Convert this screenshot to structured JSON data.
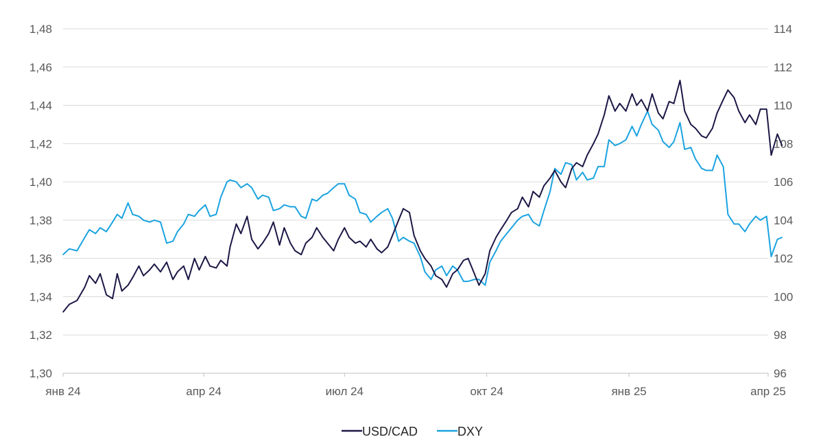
{
  "chart_data": {
    "type": "line",
    "title": "",
    "xlabel": "",
    "x_tick_labels": [
      "янв 24",
      "апр 24",
      "июл 24",
      "окт 24",
      "янв 25",
      "апр 25"
    ],
    "x_ticks": [
      "2024-01-01",
      "2024-04-01",
      "2024-07-01",
      "2024-10-01",
      "2025-01-01",
      "2025-04-01"
    ],
    "y_left": {
      "lim": [
        1.3,
        1.48
      ],
      "ticks": [
        "1,30",
        "1,32",
        "1,34",
        "1,36",
        "1,38",
        "1,40",
        "1,42",
        "1,44",
        "1,46",
        "1,48"
      ]
    },
    "y_right": {
      "lim": [
        96,
        114
      ],
      "ticks": [
        "96",
        "98",
        "100",
        "102",
        "104",
        "106",
        "108",
        "110",
        "112",
        "114"
      ]
    },
    "grid": "horizontal",
    "legend_position": "bottom-center",
    "series": [
      {
        "name": "USD/CAD",
        "axis": "left",
        "color": "#1b1745",
        "points": [
          [
            "2024-01-01",
            1.332
          ],
          [
            "2024-01-05",
            1.336
          ],
          [
            "2024-01-10",
            1.338
          ],
          [
            "2024-01-15",
            1.345
          ],
          [
            "2024-01-18",
            1.351
          ],
          [
            "2024-01-22",
            1.347
          ],
          [
            "2024-01-25",
            1.352
          ],
          [
            "2024-01-29",
            1.341
          ],
          [
            "2024-02-02",
            1.339
          ],
          [
            "2024-02-05",
            1.352
          ],
          [
            "2024-02-08",
            1.343
          ],
          [
            "2024-02-12",
            1.346
          ],
          [
            "2024-02-15",
            1.35
          ],
          [
            "2024-02-19",
            1.356
          ],
          [
            "2024-02-22",
            1.351
          ],
          [
            "2024-02-26",
            1.354
          ],
          [
            "2024-02-29",
            1.357
          ],
          [
            "2024-03-04",
            1.353
          ],
          [
            "2024-03-08",
            1.358
          ],
          [
            "2024-03-12",
            1.349
          ],
          [
            "2024-03-15",
            1.353
          ],
          [
            "2024-03-19",
            1.356
          ],
          [
            "2024-03-22",
            1.349
          ],
          [
            "2024-03-26",
            1.36
          ],
          [
            "2024-03-29",
            1.354
          ],
          [
            "2024-04-02",
            1.361
          ],
          [
            "2024-04-05",
            1.356
          ],
          [
            "2024-04-09",
            1.355
          ],
          [
            "2024-04-12",
            1.359
          ],
          [
            "2024-04-16",
            1.356
          ],
          [
            "2024-04-18",
            1.366
          ],
          [
            "2024-04-22",
            1.378
          ],
          [
            "2024-04-25",
            1.373
          ],
          [
            "2024-04-29",
            1.382
          ],
          [
            "2024-05-02",
            1.37
          ],
          [
            "2024-05-06",
            1.365
          ],
          [
            "2024-05-09",
            1.368
          ],
          [
            "2024-05-13",
            1.373
          ],
          [
            "2024-05-16",
            1.379
          ],
          [
            "2024-05-20",
            1.367
          ],
          [
            "2024-05-23",
            1.376
          ],
          [
            "2024-05-27",
            1.368
          ],
          [
            "2024-05-30",
            1.364
          ],
          [
            "2024-06-03",
            1.362
          ],
          [
            "2024-06-06",
            1.368
          ],
          [
            "2024-06-10",
            1.371
          ],
          [
            "2024-06-13",
            1.376
          ],
          [
            "2024-06-17",
            1.371
          ],
          [
            "2024-06-20",
            1.368
          ],
          [
            "2024-06-24",
            1.364
          ],
          [
            "2024-06-27",
            1.37
          ],
          [
            "2024-07-01",
            1.376
          ],
          [
            "2024-07-04",
            1.371
          ],
          [
            "2024-07-08",
            1.368
          ],
          [
            "2024-07-11",
            1.369
          ],
          [
            "2024-07-15",
            1.366
          ],
          [
            "2024-07-18",
            1.37
          ],
          [
            "2024-07-22",
            1.365
          ],
          [
            "2024-07-25",
            1.363
          ],
          [
            "2024-07-29",
            1.366
          ],
          [
            "2024-08-01",
            1.372
          ],
          [
            "2024-08-05",
            1.38
          ],
          [
            "2024-08-08",
            1.386
          ],
          [
            "2024-08-12",
            1.384
          ],
          [
            "2024-08-15",
            1.372
          ],
          [
            "2024-08-19",
            1.364
          ],
          [
            "2024-08-22",
            1.36
          ],
          [
            "2024-08-26",
            1.356
          ],
          [
            "2024-08-29",
            1.351
          ],
          [
            "2024-09-02",
            1.349
          ],
          [
            "2024-09-05",
            1.345
          ],
          [
            "2024-09-09",
            1.352
          ],
          [
            "2024-09-12",
            1.354
          ],
          [
            "2024-09-16",
            1.359
          ],
          [
            "2024-09-19",
            1.36
          ],
          [
            "2024-09-23",
            1.352
          ],
          [
            "2024-09-26",
            1.346
          ],
          [
            "2024-09-30",
            1.352
          ],
          [
            "2024-10-03",
            1.364
          ],
          [
            "2024-10-07",
            1.371
          ],
          [
            "2024-10-10",
            1.375
          ],
          [
            "2024-10-14",
            1.38
          ],
          [
            "2024-10-17",
            1.384
          ],
          [
            "2024-10-21",
            1.386
          ],
          [
            "2024-10-24",
            1.392
          ],
          [
            "2024-10-28",
            1.387
          ],
          [
            "2024-10-31",
            1.395
          ],
          [
            "2024-11-04",
            1.392
          ],
          [
            "2024-11-07",
            1.398
          ],
          [
            "2024-11-11",
            1.402
          ],
          [
            "2024-11-14",
            1.406
          ],
          [
            "2024-11-18",
            1.4
          ],
          [
            "2024-11-21",
            1.397
          ],
          [
            "2024-11-25",
            1.407
          ],
          [
            "2024-11-28",
            1.41
          ],
          [
            "2024-12-02",
            1.408
          ],
          [
            "2024-12-05",
            1.414
          ],
          [
            "2024-12-09",
            1.42
          ],
          [
            "2024-12-12",
            1.425
          ],
          [
            "2024-12-16",
            1.435
          ],
          [
            "2024-12-19",
            1.445
          ],
          [
            "2024-12-23",
            1.437
          ],
          [
            "2024-12-26",
            1.441
          ],
          [
            "2024-12-30",
            1.437
          ],
          [
            "2025-01-03",
            1.446
          ],
          [
            "2025-01-06",
            1.44
          ],
          [
            "2025-01-09",
            1.443
          ],
          [
            "2025-01-13",
            1.437
          ],
          [
            "2025-01-16",
            1.446
          ],
          [
            "2025-01-20",
            1.436
          ],
          [
            "2025-01-23",
            1.433
          ],
          [
            "2025-01-27",
            1.442
          ],
          [
            "2025-01-30",
            1.441
          ],
          [
            "2025-02-03",
            1.453
          ],
          [
            "2025-02-06",
            1.437
          ],
          [
            "2025-02-10",
            1.43
          ],
          [
            "2025-02-13",
            1.428
          ],
          [
            "2025-02-17",
            1.424
          ],
          [
            "2025-02-20",
            1.423
          ],
          [
            "2025-02-24",
            1.428
          ],
          [
            "2025-02-27",
            1.436
          ],
          [
            "2025-03-03",
            1.443
          ],
          [
            "2025-03-06",
            1.448
          ],
          [
            "2025-03-10",
            1.444
          ],
          [
            "2025-03-13",
            1.437
          ],
          [
            "2025-03-17",
            1.431
          ],
          [
            "2025-03-20",
            1.435
          ],
          [
            "2025-03-24",
            1.43
          ],
          [
            "2025-03-27",
            1.438
          ],
          [
            "2025-03-31",
            1.438
          ],
          [
            "2025-04-03",
            1.414
          ],
          [
            "2025-04-07",
            1.425
          ],
          [
            "2025-04-10",
            1.419
          ]
        ]
      },
      {
        "name": "DXY",
        "axis": "right",
        "color": "#1aa3e0",
        "points": [
          [
            "2024-01-01",
            102.2
          ],
          [
            "2024-01-05",
            102.5
          ],
          [
            "2024-01-10",
            102.4
          ],
          [
            "2024-01-15",
            103.1
          ],
          [
            "2024-01-18",
            103.5
          ],
          [
            "2024-01-22",
            103.3
          ],
          [
            "2024-01-25",
            103.6
          ],
          [
            "2024-01-29",
            103.4
          ],
          [
            "2024-02-02",
            103.9
          ],
          [
            "2024-02-05",
            104.3
          ],
          [
            "2024-02-08",
            104.1
          ],
          [
            "2024-02-12",
            104.9
          ],
          [
            "2024-02-15",
            104.3
          ],
          [
            "2024-02-19",
            104.2
          ],
          [
            "2024-02-22",
            104.0
          ],
          [
            "2024-02-26",
            103.9
          ],
          [
            "2024-02-29",
            104.0
          ],
          [
            "2024-03-04",
            103.9
          ],
          [
            "2024-03-08",
            102.8
          ],
          [
            "2024-03-12",
            102.9
          ],
          [
            "2024-03-15",
            103.4
          ],
          [
            "2024-03-19",
            103.8
          ],
          [
            "2024-03-22",
            104.3
          ],
          [
            "2024-03-26",
            104.2
          ],
          [
            "2024-03-29",
            104.5
          ],
          [
            "2024-04-02",
            104.8
          ],
          [
            "2024-04-05",
            104.2
          ],
          [
            "2024-04-09",
            104.3
          ],
          [
            "2024-04-12",
            105.2
          ],
          [
            "2024-04-16",
            106.0
          ],
          [
            "2024-04-18",
            106.1
          ],
          [
            "2024-04-22",
            106.0
          ],
          [
            "2024-04-25",
            105.7
          ],
          [
            "2024-04-29",
            105.9
          ],
          [
            "2024-05-02",
            105.7
          ],
          [
            "2024-05-06",
            105.1
          ],
          [
            "2024-05-09",
            105.3
          ],
          [
            "2024-05-13",
            105.2
          ],
          [
            "2024-05-16",
            104.5
          ],
          [
            "2024-05-20",
            104.6
          ],
          [
            "2024-05-23",
            104.8
          ],
          [
            "2024-05-27",
            104.7
          ],
          [
            "2024-05-30",
            104.7
          ],
          [
            "2024-06-03",
            104.2
          ],
          [
            "2024-06-06",
            104.1
          ],
          [
            "2024-06-10",
            105.1
          ],
          [
            "2024-06-13",
            105.0
          ],
          [
            "2024-06-17",
            105.3
          ],
          [
            "2024-06-20",
            105.4
          ],
          [
            "2024-06-24",
            105.7
          ],
          [
            "2024-06-27",
            105.9
          ],
          [
            "2024-07-01",
            105.9
          ],
          [
            "2024-07-04",
            105.3
          ],
          [
            "2024-07-08",
            105.1
          ],
          [
            "2024-07-11",
            104.4
          ],
          [
            "2024-07-15",
            104.3
          ],
          [
            "2024-07-18",
            103.9
          ],
          [
            "2024-07-22",
            104.2
          ],
          [
            "2024-07-25",
            104.4
          ],
          [
            "2024-07-29",
            104.6
          ],
          [
            "2024-08-01",
            104.1
          ],
          [
            "2024-08-05",
            102.9
          ],
          [
            "2024-08-08",
            103.1
          ],
          [
            "2024-08-12",
            102.9
          ],
          [
            "2024-08-15",
            102.8
          ],
          [
            "2024-08-19",
            102.1
          ],
          [
            "2024-08-22",
            101.3
          ],
          [
            "2024-08-26",
            100.9
          ],
          [
            "2024-08-29",
            101.4
          ],
          [
            "2024-09-02",
            101.6
          ],
          [
            "2024-09-05",
            101.1
          ],
          [
            "2024-09-09",
            101.6
          ],
          [
            "2024-09-12",
            101.4
          ],
          [
            "2024-09-16",
            100.8
          ],
          [
            "2024-09-19",
            100.8
          ],
          [
            "2024-09-23",
            100.9
          ],
          [
            "2024-09-26",
            100.9
          ],
          [
            "2024-09-30",
            100.6
          ],
          [
            "2024-10-03",
            101.8
          ],
          [
            "2024-10-07",
            102.4
          ],
          [
            "2024-10-10",
            102.9
          ],
          [
            "2024-10-14",
            103.3
          ],
          [
            "2024-10-17",
            103.6
          ],
          [
            "2024-10-21",
            104.0
          ],
          [
            "2024-10-24",
            104.2
          ],
          [
            "2024-10-28",
            104.3
          ],
          [
            "2024-10-31",
            103.9
          ],
          [
            "2024-11-04",
            103.7
          ],
          [
            "2024-11-07",
            104.5
          ],
          [
            "2024-11-11",
            105.5
          ],
          [
            "2024-11-14",
            106.7
          ],
          [
            "2024-11-18",
            106.4
          ],
          [
            "2024-11-21",
            107.0
          ],
          [
            "2024-11-25",
            106.9
          ],
          [
            "2024-11-28",
            106.1
          ],
          [
            "2024-12-02",
            106.5
          ],
          [
            "2024-12-05",
            106.1
          ],
          [
            "2024-12-09",
            106.2
          ],
          [
            "2024-12-12",
            106.8
          ],
          [
            "2024-12-16",
            106.8
          ],
          [
            "2024-12-19",
            108.2
          ],
          [
            "2024-12-23",
            107.9
          ],
          [
            "2024-12-26",
            108.0
          ],
          [
            "2024-12-30",
            108.2
          ],
          [
            "2025-01-03",
            108.9
          ],
          [
            "2025-01-06",
            108.4
          ],
          [
            "2025-01-09",
            109.0
          ],
          [
            "2025-01-13",
            109.7
          ],
          [
            "2025-01-16",
            109.0
          ],
          [
            "2025-01-20",
            108.7
          ],
          [
            "2025-01-23",
            108.1
          ],
          [
            "2025-01-27",
            107.8
          ],
          [
            "2025-01-30",
            108.1
          ],
          [
            "2025-02-03",
            109.1
          ],
          [
            "2025-02-06",
            107.7
          ],
          [
            "2025-02-10",
            107.8
          ],
          [
            "2025-02-13",
            107.2
          ],
          [
            "2025-02-17",
            106.7
          ],
          [
            "2025-02-20",
            106.6
          ],
          [
            "2025-02-24",
            106.6
          ],
          [
            "2025-02-27",
            107.4
          ],
          [
            "2025-03-03",
            106.8
          ],
          [
            "2025-03-06",
            104.3
          ],
          [
            "2025-03-10",
            103.8
          ],
          [
            "2025-03-13",
            103.8
          ],
          [
            "2025-03-17",
            103.4
          ],
          [
            "2025-03-20",
            103.8
          ],
          [
            "2025-03-24",
            104.2
          ],
          [
            "2025-03-27",
            104.0
          ],
          [
            "2025-03-31",
            104.2
          ],
          [
            "2025-04-03",
            102.1
          ],
          [
            "2025-04-07",
            103.0
          ],
          [
            "2025-04-10",
            103.1
          ]
        ]
      }
    ]
  }
}
